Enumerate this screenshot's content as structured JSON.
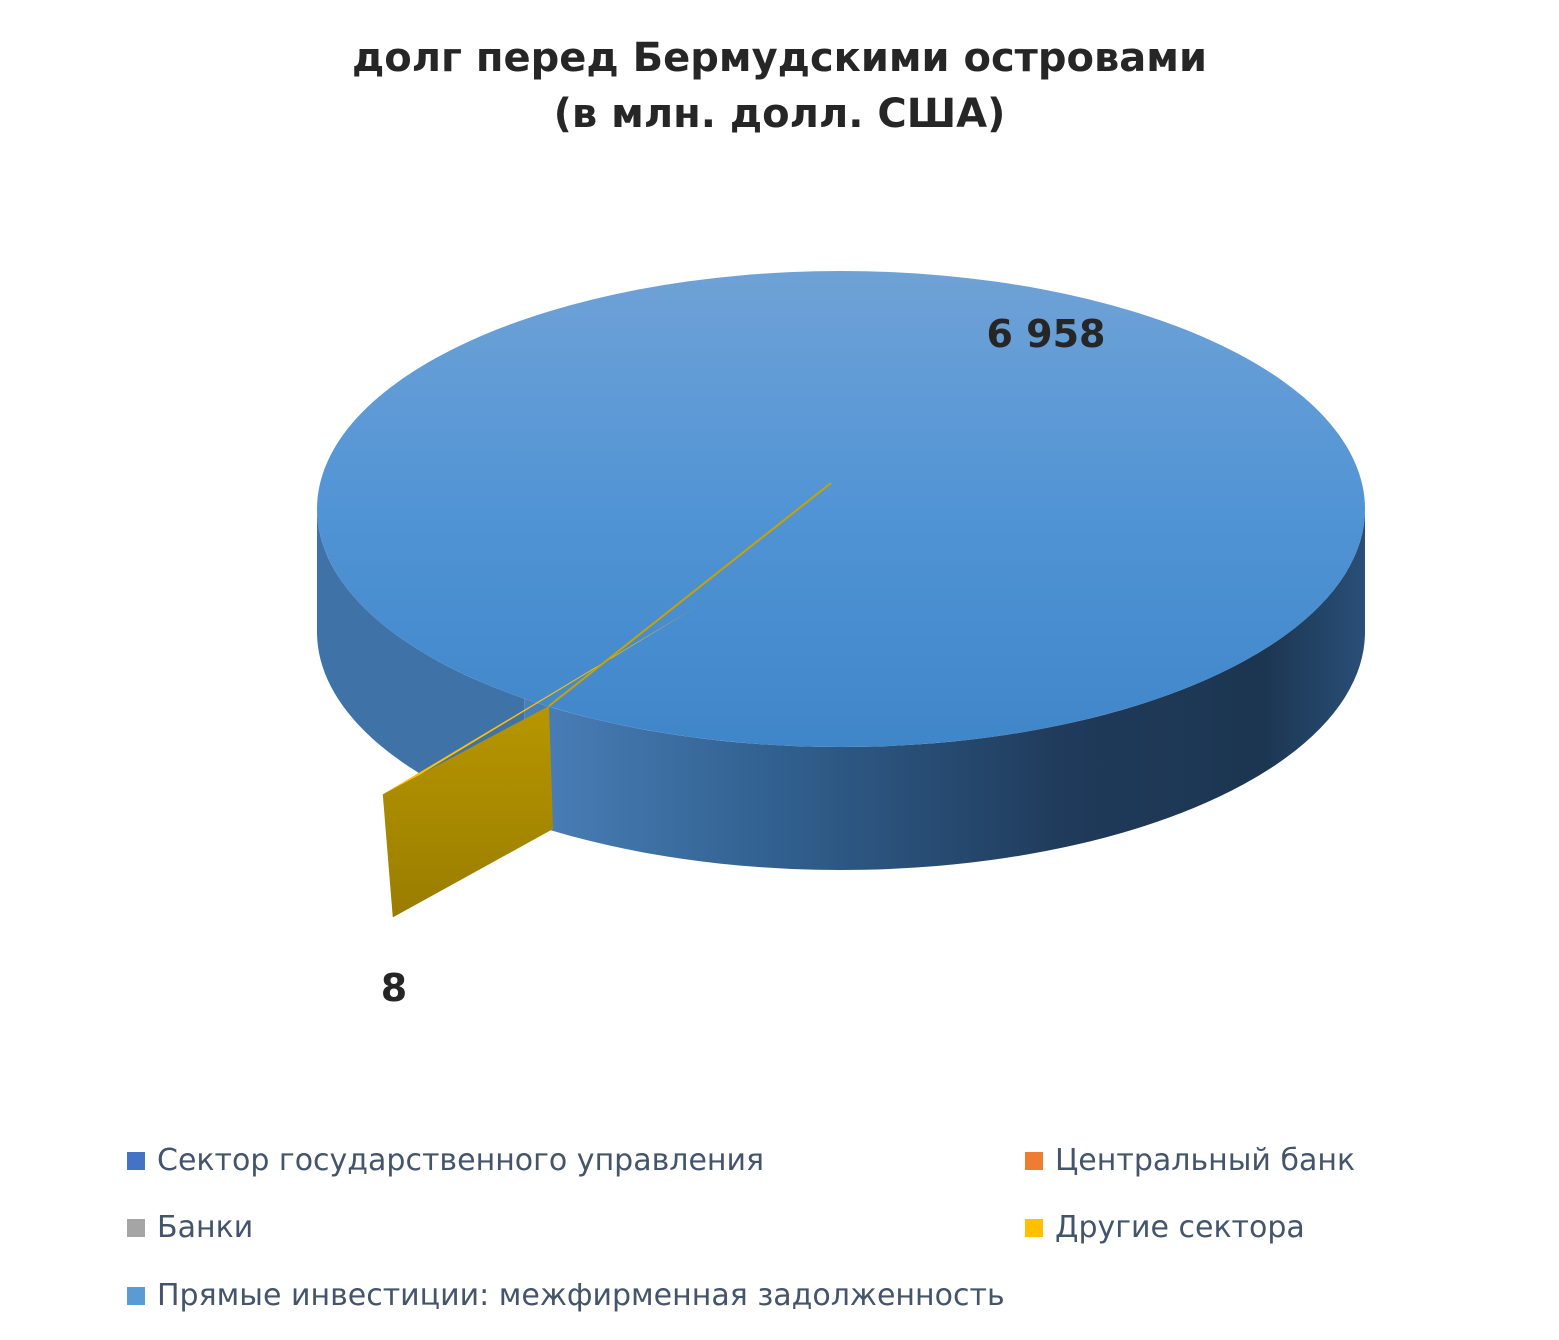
{
  "chart_data": {
    "type": "pie",
    "title": "долг перед Бермудскими островами",
    "subtitle": "(в млн. долл. США)",
    "three_d": true,
    "categories": [
      "Сектор государственного управления",
      "Центральный банк",
      "Банки",
      "Другие сектора",
      "Прямые инвестиции: межфирменная задолженность"
    ],
    "values": [
      0,
      0,
      0,
      8,
      6958
    ],
    "data_labels": [
      "",
      "",
      "",
      "8",
      "6 958"
    ],
    "colors": [
      "#4472c4",
      "#ed7d31",
      "#a5a5a5",
      "#ffc000",
      "#5b9bd5"
    ],
    "legend_position": "bottom"
  }
}
